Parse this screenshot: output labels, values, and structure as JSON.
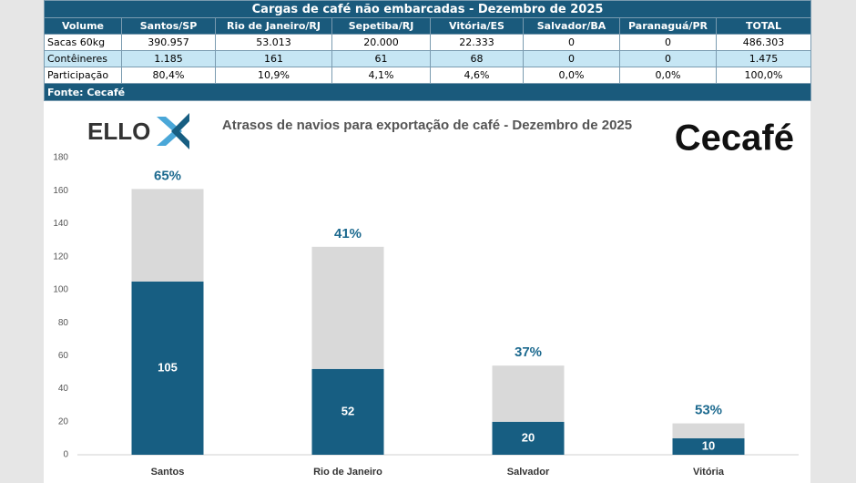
{
  "table": {
    "title": "Cargas de café não embarcadas - Dezembro de 2025",
    "headers": [
      "Volume",
      "Santos/SP",
      "Rio de Janeiro/RJ",
      "Sepetiba/RJ",
      "Vitória/ES",
      "Salvador/BA",
      "Paranaguá/PR",
      "TOTAL"
    ],
    "rows": [
      [
        "Sacas 60kg",
        "390.957",
        "53.013",
        "20.000",
        "22.333",
        "0",
        "0",
        "486.303"
      ],
      [
        "Contêineres",
        "1.185",
        "161",
        "61",
        "68",
        "0",
        "0",
        "1.475"
      ],
      [
        "Participação",
        "80,4%",
        "10,9%",
        "4,1%",
        "4,6%",
        "0,0%",
        "0,0%",
        "100,0%"
      ]
    ],
    "footer": "Fonte: Cecafé"
  },
  "logos": {
    "left": "ELLO",
    "right": "Cecafé"
  },
  "chart_data": {
    "type": "stacked_bar",
    "title": "Atrasos de navios para exportação de café - Dezembro de 2025",
    "categories": [
      "Santos",
      "Rio de Janeiro",
      "Salvador",
      "Vitória"
    ],
    "series": [
      {
        "color": "#175e82",
        "values": [
          105,
          52,
          20,
          10
        ]
      },
      {
        "color": "#d9d9d9",
        "values": [
          56,
          74,
          34,
          9
        ]
      }
    ],
    "annotations": [
      "65%",
      "41%",
      "37%",
      "53%"
    ],
    "ylim": [
      0,
      180
    ],
    "yticks": [
      0,
      20,
      40,
      60,
      80,
      100,
      120,
      140,
      160,
      180
    ],
    "grid": false
  }
}
